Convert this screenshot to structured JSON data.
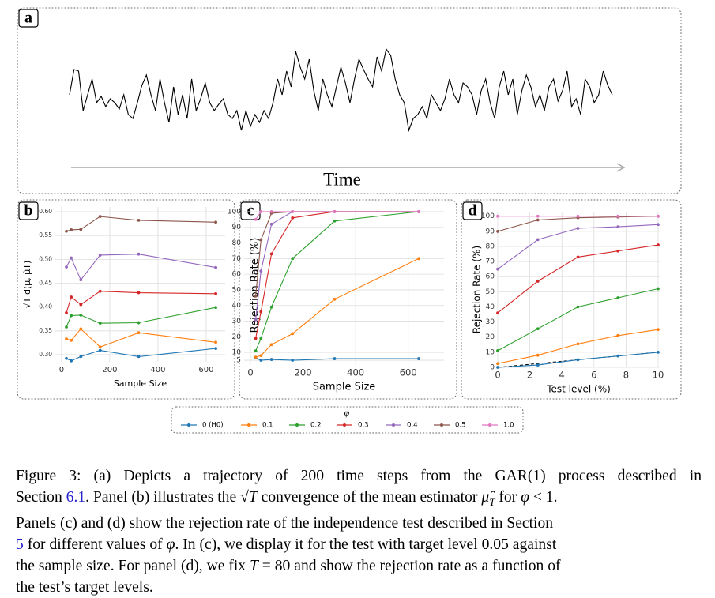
{
  "chart_data": [
    {
      "type": "line",
      "label": "a",
      "xlabel": "Time",
      "color": "#000000",
      "ylim": [
        0,
        130
      ],
      "values": [
        60,
        92,
        90,
        40,
        60,
        80,
        50,
        58,
        45,
        55,
        50,
        42,
        60,
        35,
        30,
        50,
        72,
        85,
        60,
        40,
        80,
        50,
        25,
        70,
        35,
        60,
        30,
        80,
        40,
        55,
        75,
        50,
        40,
        48,
        55,
        35,
        30,
        40,
        15,
        40,
        20,
        35,
        25,
        40,
        30,
        50,
        80,
        60,
        90,
        70,
        115,
        95,
        80,
        105,
        65,
        40,
        80,
        60,
        45,
        70,
        95,
        75,
        50,
        80,
        105,
        92,
        80,
        70,
        108,
        90,
        118,
        110,
        80,
        60,
        50,
        15,
        30,
        35,
        45,
        30,
        60,
        50,
        40,
        55,
        80,
        60,
        50,
        75,
        70,
        60,
        35,
        65,
        80,
        50,
        30,
        70,
        90,
        60,
        80,
        35,
        65,
        85,
        70,
        45,
        60,
        40,
        70,
        80,
        52,
        65,
        90,
        45,
        55,
        35,
        80,
        70,
        50,
        60,
        90,
        72,
        60
      ]
    },
    {
      "type": "line",
      "label": "b",
      "xlabel": "Sample Size",
      "ylabel": "√T d(μ, μ̂T)",
      "x": [
        20,
        40,
        80,
        160,
        320,
        640
      ],
      "xlim": [
        -26,
        679
      ],
      "xticks": [
        0,
        200,
        400,
        600
      ],
      "ylim": [
        0.285,
        0.61
      ],
      "yticks": [
        {
          "value": 0.3,
          "label": "0.30"
        },
        {
          "value": 0.35,
          "label": "0.35"
        },
        {
          "value": 0.4,
          "label": "0.40"
        },
        {
          "value": 0.45,
          "label": "0.45"
        },
        {
          "value": 0.5,
          "label": "0.50"
        },
        {
          "value": 0.55,
          "label": "0.55"
        },
        {
          "value": 0.6,
          "label": "0.60"
        }
      ],
      "grid": true,
      "series": [
        {
          "name": "0 (H0)",
          "color": "#1f77b4",
          "values": [
            0.292,
            0.287,
            0.296,
            0.309,
            0.296,
            0.313
          ]
        },
        {
          "name": "0.1",
          "color": "#ff7f0e",
          "values": [
            0.333,
            0.33,
            0.354,
            0.316,
            0.346,
            0.326
          ]
        },
        {
          "name": "0.2",
          "color": "#2ca02c",
          "values": [
            0.358,
            0.382,
            0.383,
            0.366,
            0.367,
            0.399
          ]
        },
        {
          "name": "0.3",
          "color": "#d62728",
          "values": [
            0.388,
            0.421,
            0.405,
            0.433,
            0.43,
            0.428
          ]
        },
        {
          "name": "0.4",
          "color": "#9467bd",
          "values": [
            0.484,
            0.503,
            0.457,
            0.509,
            0.511,
            0.483
          ]
        },
        {
          "name": "0.5",
          "color": "#8c564b",
          "values": [
            0.559,
            0.562,
            0.563,
            0.59,
            0.582,
            0.578
          ]
        }
      ]
    },
    {
      "type": "line",
      "label": "c",
      "xlabel": "Sample Size",
      "ylabel": "Rejection Rate (%)",
      "x": [
        20,
        40,
        80,
        160,
        320,
        640
      ],
      "xlim": [
        -24,
        736
      ],
      "xticks": [
        0,
        200,
        400,
        600
      ],
      "ylim": [
        2,
        104
      ],
      "yticks": [
        5,
        10,
        20,
        30,
        40,
        50,
        60,
        70,
        80,
        90,
        100
      ],
      "grid": true,
      "series": [
        {
          "name": "0 (H0)",
          "color": "#1f77b4",
          "values": [
            6.5,
            5,
            5.5,
            5,
            6,
            6
          ]
        },
        {
          "name": "0.1",
          "color": "#ff7f0e",
          "values": [
            7,
            8,
            15,
            22,
            44,
            70
          ]
        },
        {
          "name": "0.2",
          "color": "#2ca02c",
          "values": [
            11,
            19,
            39,
            70,
            94,
            100
          ]
        },
        {
          "name": "0.3",
          "color": "#d62728",
          "values": [
            19,
            36,
            73,
            96,
            100,
            100
          ]
        },
        {
          "name": "0.4",
          "color": "#9467bd",
          "values": [
            31,
            62,
            92,
            100,
            100,
            100
          ]
        },
        {
          "name": "0.5",
          "color": "#8c564b",
          "values": [
            46,
            82,
            99,
            100,
            100,
            100
          ]
        },
        {
          "name": "1.0",
          "color": "#e377c2",
          "values": [
            95,
            100,
            100,
            100,
            100,
            100
          ]
        }
      ]
    },
    {
      "type": "line",
      "label": "d",
      "xlabel": "Test level (%)",
      "ylabel": "Rejection Rate (%)",
      "x": [
        0,
        2.5,
        5,
        7.5,
        10
      ],
      "xlim": [
        0,
        10.1
      ],
      "xticks": [
        0,
        2,
        4,
        6,
        8,
        10
      ],
      "ylim": [
        0,
        103
      ],
      "yticks": [
        0,
        10,
        20,
        30,
        40,
        50,
        60,
        70,
        80,
        90,
        100
      ],
      "grid": true,
      "reference_line": true,
      "series": [
        {
          "name": "0 (H0)",
          "color": "#1f77b4",
          "values": [
            0,
            1.5,
            5,
            7.5,
            10
          ]
        },
        {
          "name": "0.1",
          "color": "#ff7f0e",
          "values": [
            2.5,
            8,
            15.5,
            21,
            25
          ]
        },
        {
          "name": "0.2",
          "color": "#2ca02c",
          "values": [
            11,
            25.5,
            40,
            46,
            52
          ]
        },
        {
          "name": "0.3",
          "color": "#d62728",
          "values": [
            36,
            57,
            73,
            77,
            81
          ]
        },
        {
          "name": "0.4",
          "color": "#9467bd",
          "values": [
            65,
            84.5,
            92,
            93,
            94.5
          ]
        },
        {
          "name": "0.5",
          "color": "#8c564b",
          "values": [
            90,
            97.5,
            99,
            99.5,
            100
          ]
        },
        {
          "name": "1.0",
          "color": "#e377c2",
          "values": [
            100,
            100,
            100,
            100,
            100
          ]
        }
      ]
    }
  ],
  "legend_title": "φ",
  "caption": {
    "lines": [
      [
        "Figure 3: (a) Depicts a trajectory of 200 time steps from the GAR(1) process described in"
      ],
      [
        "Section ",
        "6.1",
        ". Panel (b) illustrates the ",
        "√T",
        " convergence of the mean estimator ",
        "μ̂",
        "T",
        " for ",
        "φ",
        " < 1."
      ],
      [
        "Panels (c) and (d) show the rejection rate of the independence test described in Section"
      ],
      [
        "5",
        " for different values of ",
        "φ",
        ". In (c), we display it for the test with target level 0.05 against"
      ],
      [
        "the sample size. For panel (d), we fix ",
        "T",
        " = 80 and show the rejection rate as a function of"
      ],
      [
        "the test’s target levels."
      ]
    ]
  }
}
